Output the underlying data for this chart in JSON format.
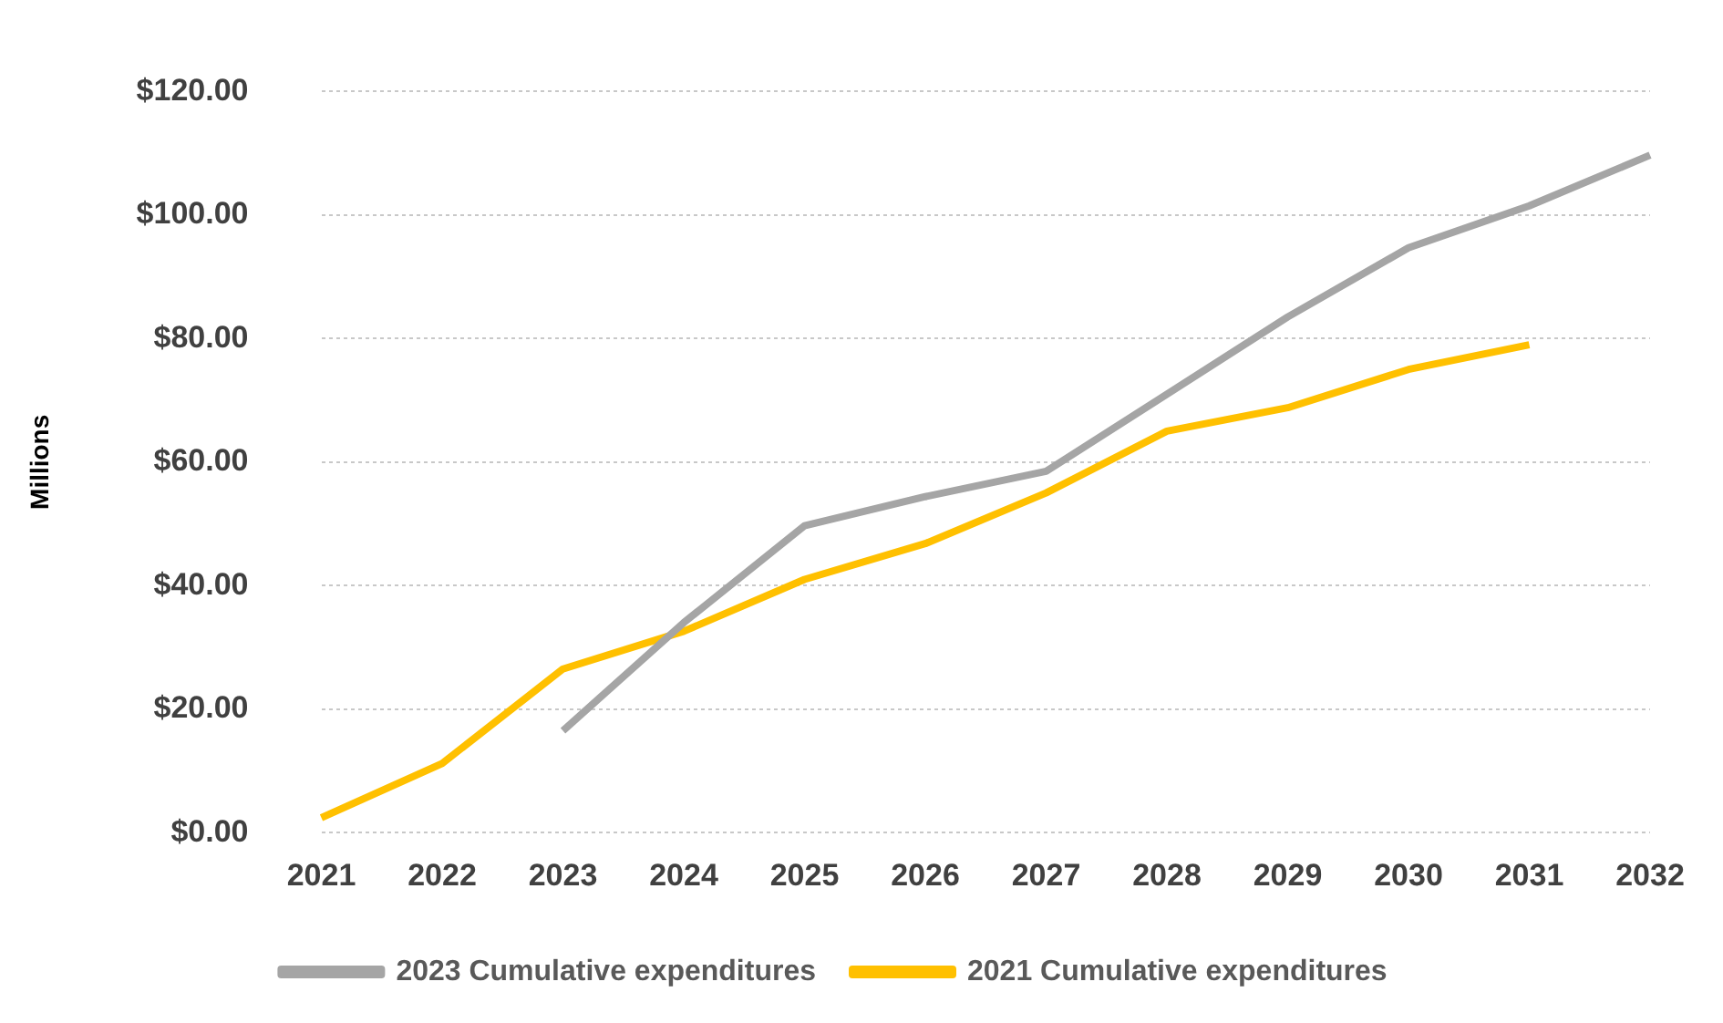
{
  "chart_data": {
    "type": "line",
    "ylabel": "Millions",
    "categories": [
      "2021",
      "2022",
      "2023",
      "2024",
      "2025",
      "2026",
      "2027",
      "2028",
      "2029",
      "2030",
      "2031",
      "2032"
    ],
    "series": [
      {
        "name": "2023 Cumulative expenditures",
        "color": "#a5a5a5",
        "values": [
          null,
          null,
          16.5,
          34,
          49.7,
          54.4,
          58.5,
          71,
          83.5,
          94.7,
          101.5,
          109.7
        ]
      },
      {
        "name": "2021 Cumulative expenditures",
        "color": "#ffc000",
        "values": [
          2.4,
          11.2,
          26.5,
          32.6,
          41,
          46.8,
          55,
          65,
          68.8,
          75,
          79,
          null
        ]
      }
    ],
    "ylim": [
      0,
      120
    ],
    "yticks": [
      {
        "value": 0,
        "label": "$0.00"
      },
      {
        "value": 20,
        "label": "$20.00"
      },
      {
        "value": 40,
        "label": "$40.00"
      },
      {
        "value": 60,
        "label": "$60.00"
      },
      {
        "value": 80,
        "label": "$80.00"
      },
      {
        "value": 100,
        "label": "$100.00"
      },
      {
        "value": 120,
        "label": "$120.00"
      }
    ],
    "grid": "y",
    "legend": "bottom",
    "marker": "none",
    "line_style": "solid"
  }
}
